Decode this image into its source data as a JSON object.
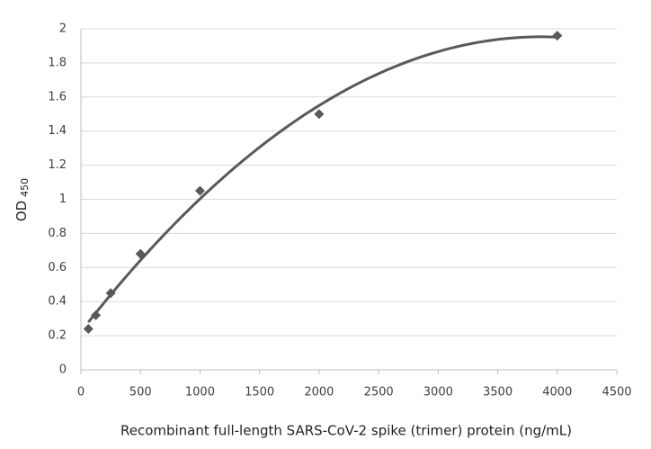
{
  "chart_data": {
    "type": "scatter",
    "xlabel": "Recombinant full-length SARS-CoV-2 spike (trimer) protein (ng/mL)",
    "ylabel": "OD",
    "ylabel_sub": "450",
    "x": [
      62.5,
      125,
      250,
      500,
      1000,
      2000,
      4000
    ],
    "values": [
      0.24,
      0.32,
      0.45,
      0.68,
      1.05,
      1.5,
      1.96
    ],
    "color": "#595959",
    "trendline": {
      "type": "polynomial",
      "order": 2
    },
    "xlim": [
      0,
      4500
    ],
    "xticks": [
      0,
      500,
      1000,
      1500,
      2000,
      2500,
      3000,
      3500,
      4000,
      4500
    ],
    "ylim": [
      0,
      2
    ],
    "yticks": [
      0,
      0.2,
      0.4,
      0.6,
      0.8,
      1,
      1.2,
      1.4,
      1.6,
      1.8,
      2
    ],
    "grid": true
  }
}
